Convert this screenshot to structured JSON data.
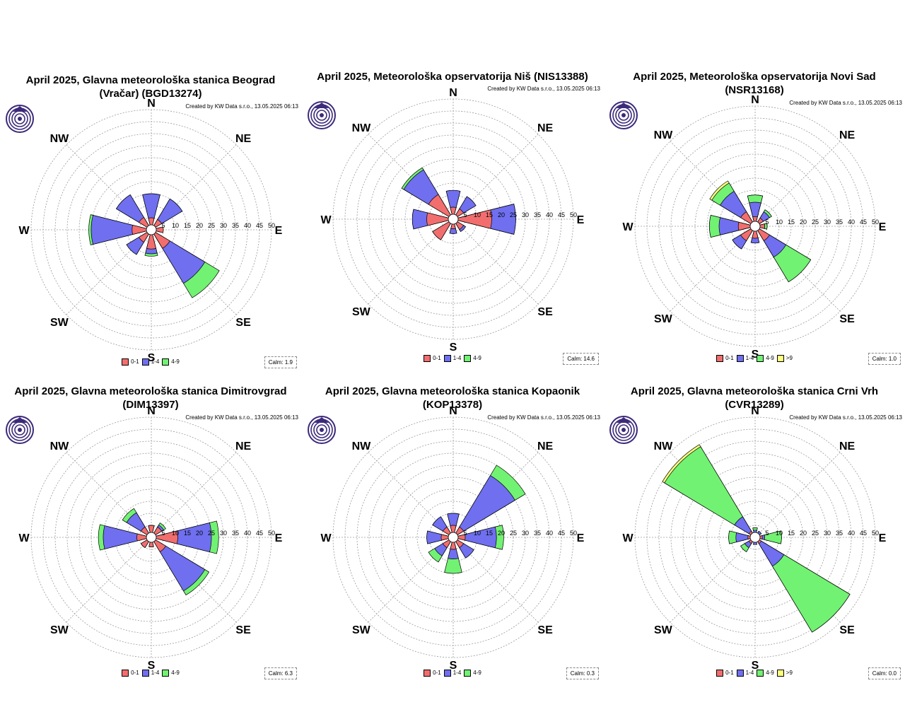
{
  "created_label": "Created by KW Data s.r.o., 13.05.2025 06:13",
  "directions": [
    "N",
    "NE",
    "E",
    "SE",
    "S",
    "SW",
    "W",
    "NW"
  ],
  "rings": [
    5,
    10,
    15,
    20,
    25,
    30,
    35,
    40,
    45,
    50
  ],
  "colors": {
    "0-1": "#f26e6e",
    "1-4": "#6f6ff0",
    "4-9": "#72f272",
    ">9": "#ffff80"
  },
  "chart_data": [
    {
      "type": "windrose",
      "title_lines": [
        "April 2025, Glavna meteorološka stanica Beograd",
        "(Vračar) (BGD13274)"
      ],
      "legend": [
        "0-1",
        "1-4",
        "4-9"
      ],
      "calm": "Calm: 1.9",
      "rmax": 50,
      "directions": [
        "N",
        "NE",
        "E",
        "SE",
        "S",
        "SW",
        "W",
        "NW"
      ],
      "series": [
        {
          "name": "0-1",
          "values": [
            5,
            5,
            5,
            9,
            8,
            6,
            8,
            6
          ]
        },
        {
          "name": "1-4",
          "values": [
            15,
            15,
            4,
            26,
            10,
            12,
            25,
            17
          ]
        },
        {
          "name": "4-9",
          "values": [
            15,
            15,
            4,
            33,
            11,
            12,
            26,
            17
          ]
        }
      ]
    },
    {
      "type": "windrose",
      "title_lines": [
        "April 2025, Meteorološka opservatorija Niš (NIS13388)"
      ],
      "legend": [
        "0-1",
        "1-4",
        "4-9"
      ],
      "calm": "Calm: 14.6",
      "rmax": 50,
      "directions": [
        "N",
        "NE",
        "E",
        "SE",
        "S",
        "SW",
        "W",
        "NW"
      ],
      "series": [
        {
          "name": "0-1",
          "values": [
            5,
            5,
            16,
            5,
            4,
            10,
            11,
            12
          ]
        },
        {
          "name": "1-4",
          "values": [
            12,
            11,
            26,
            6,
            6,
            10,
            17,
            24
          ]
        },
        {
          "name": "4-9",
          "values": [
            12,
            11,
            26,
            6,
            6,
            10,
            17,
            25
          ]
        }
      ]
    },
    {
      "type": "windrose",
      "title_lines": [
        "April 2025, Meteorološka opservatorija Novi Sad",
        "(NSR13168)"
      ],
      "legend": [
        "0-1",
        "1-4",
        "4-9",
        ">9"
      ],
      "calm": "Calm: 1.0",
      "rmax": 50,
      "directions": [
        "N",
        "NE",
        "E",
        "SE",
        "S",
        "SW",
        "W",
        "NW"
      ],
      "series": [
        {
          "name": "0-1",
          "values": [
            4,
            4,
            4,
            7,
            5,
            7,
            7,
            7
          ]
        },
        {
          "name": "1-4",
          "values": [
            10,
            7,
            4,
            15,
            7,
            11,
            15,
            17
          ]
        },
        {
          "name": "4-9",
          "values": [
            13,
            8,
            5,
            27,
            7,
            11,
            19,
            21
          ]
        },
        {
          "name": ">9",
          "values": [
            13,
            8,
            5,
            27,
            7,
            11,
            19,
            22
          ]
        }
      ]
    },
    {
      "type": "windrose",
      "title_lines": [
        "April 2025, Glavna meteorološka stanica Dimitrovgrad",
        "(DIM13397)"
      ],
      "legend": [
        "0-1",
        "1-4",
        "4-9"
      ],
      "calm": "Calm: 6.3",
      "rmax": 50,
      "directions": [
        "N",
        "NE",
        "E",
        "SE",
        "S",
        "SW",
        "W",
        "NW"
      ],
      "series": [
        {
          "name": "0-1",
          "values": [
            5,
            5,
            11,
            7,
            4,
            5,
            6,
            5
          ]
        },
        {
          "name": "1-4",
          "values": [
            5,
            6,
            25,
            26,
            4,
            5,
            20,
            12
          ]
        },
        {
          "name": "4-9",
          "values": [
            5,
            7,
            28,
            28,
            4,
            5,
            22,
            14
          ]
        }
      ]
    },
    {
      "type": "windrose",
      "title_lines": [
        "April 2025, Glavna meteorološka stanica Kopaonik",
        "(KOP13378)"
      ],
      "legend": [
        "0-1",
        "1-4",
        "4-9"
      ],
      "calm": "Calm: 0.3",
      "rmax": 50,
      "directions": [
        "N",
        "NE",
        "E",
        "SE",
        "S",
        "SW",
        "W",
        "NW"
      ],
      "series": [
        {
          "name": "0-1",
          "values": [
            5,
            5,
            5,
            5,
            5,
            5,
            5,
            5
          ]
        },
        {
          "name": "1-4",
          "values": [
            10,
            30,
            18,
            10,
            9,
            9,
            11,
            10
          ]
        },
        {
          "name": "4-9",
          "values": [
            10,
            35,
            21,
            10,
            15,
            12,
            11,
            10
          ]
        }
      ]
    },
    {
      "type": "windrose",
      "title_lines": [
        "April 2025, Glavna meteorološka stanica Crni Vrh",
        "(CVR13289)"
      ],
      "legend": [
        "0-1",
        "1-4",
        "4-9",
        ">9"
      ],
      "calm": "Calm: 0.0",
      "rmax": 50,
      "directions": [
        "N",
        "NE",
        "E",
        "SE",
        "S",
        "SW",
        "W",
        "NW"
      ],
      "series": [
        {
          "name": "0-1",
          "values": [
            2,
            2,
            3,
            3,
            2,
            3,
            3,
            3
          ]
        },
        {
          "name": "1-4",
          "values": [
            3,
            3,
            4,
            14,
            3,
            5,
            8,
            10
          ]
        },
        {
          "name": "4-9",
          "values": [
            4,
            3,
            11,
            46,
            3,
            7,
            11,
            44
          ]
        },
        {
          "name": ">9",
          "values": [
            4,
            3,
            11,
            46,
            3,
            7,
            11,
            45
          ]
        }
      ]
    }
  ]
}
